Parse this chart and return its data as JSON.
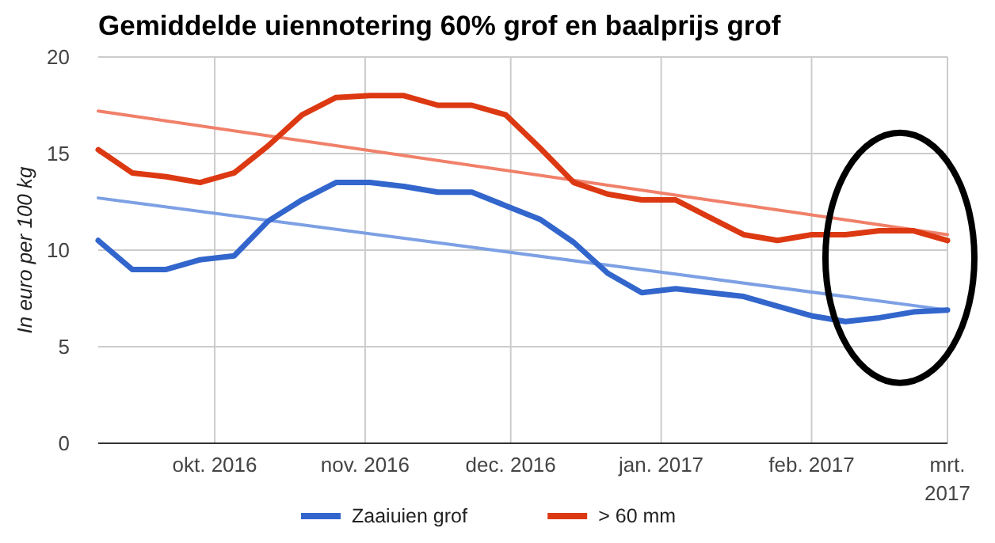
{
  "chart_data": {
    "type": "line",
    "title": "Gemiddelde uiennotering 60% grof en baalprijs grof",
    "ylabel": "In euro per 100 kg",
    "x": [
      "2016-09-07",
      "2016-09-14",
      "2016-09-21",
      "2016-09-28",
      "2016-10-05",
      "2016-10-12",
      "2016-10-19",
      "2016-10-26",
      "2016-11-02",
      "2016-11-09",
      "2016-11-16",
      "2016-11-23",
      "2016-11-30",
      "2016-12-07",
      "2016-12-14",
      "2016-12-21",
      "2016-12-28",
      "2017-01-04",
      "2017-01-11",
      "2017-01-18",
      "2017-01-25",
      "2017-02-01",
      "2017-02-08",
      "2017-02-15",
      "2017-02-22",
      "2017-03-01"
    ],
    "series": [
      {
        "name": "Zaaiuien grof",
        "color": "#3366cc",
        "values": [
          10.5,
          9.0,
          9.0,
          9.5,
          9.7,
          11.5,
          12.6,
          13.5,
          13.5,
          13.3,
          13.0,
          13.0,
          12.3,
          11.6,
          10.4,
          8.8,
          7.8,
          8.0,
          7.8,
          7.6,
          7.1,
          6.6,
          6.3,
          6.5,
          6.8,
          6.9
        ]
      },
      {
        "name": "> 60 mm",
        "color": "#dc3912",
        "values": [
          15.2,
          14.0,
          13.8,
          13.5,
          14.0,
          15.4,
          17.0,
          17.9,
          18.0,
          18.0,
          17.5,
          17.5,
          17.0,
          15.3,
          13.5,
          12.9,
          12.6,
          12.6,
          11.7,
          10.8,
          10.5,
          10.8,
          10.8,
          11.0,
          11.0,
          10.5
        ]
      },
      {
        "type": "line",
        "color": "#7da0e4",
        "x": [
          "2016-09-07",
          "2017-03-01"
        ],
        "values": [
          12.7,
          6.9
        ]
      },
      {
        "type": "line",
        "color": "#f0806a",
        "x": [
          "2016-09-07",
          "2017-03-01"
        ],
        "values": [
          17.2,
          10.8
        ]
      }
    ],
    "xlim": [
      "2016-09-07",
      "2017-03-01"
    ],
    "xticks": [
      {
        "value": "2016-10-01",
        "label": "okt. 2016"
      },
      {
        "value": "2016-11-01",
        "label": "nov. 2016"
      },
      {
        "value": "2016-12-01",
        "label": "dec. 2016"
      },
      {
        "value": "2017-01-01",
        "label": "jan. 2017"
      },
      {
        "value": "2017-02-01",
        "label": "feb. 2017"
      },
      {
        "value": "2017-03-01",
        "label": "mrt. 2017"
      }
    ],
    "ylim": [
      0,
      20
    ],
    "yticks": [
      0,
      5,
      10,
      15,
      20
    ],
    "grid": true,
    "legend": "bottom",
    "marker": "none",
    "line_style": "solid"
  }
}
